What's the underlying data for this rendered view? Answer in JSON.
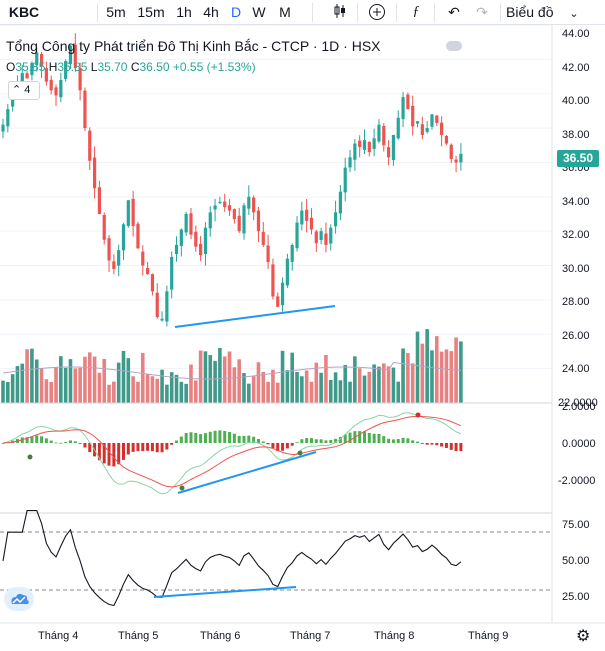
{
  "toolbar": {
    "symbol": "KBC",
    "intervals": [
      "5m",
      "15m",
      "1h",
      "4h",
      "D",
      "W",
      "M"
    ],
    "active_interval": "D",
    "chart_type_label": "Biểu đồ"
  },
  "legend": {
    "title": "Tổng Công ty Phát triển Đô Thị Kinh Bắc - CTCP · 1D · HSX",
    "o_label": "O",
    "o_val": "35.85",
    "h_label": "H",
    "h_val": "36.85",
    "l_label": "L",
    "l_val": "35.70",
    "c_label": "C",
    "c_val": "36.50",
    "change": "+0.55 (+1.53%)",
    "collapse_count": "4"
  },
  "price_axis": {
    "ticks": [
      "44.00",
      "42.00",
      "40.00",
      "38.00",
      "36.00",
      "34.00",
      "32.00",
      "30.00",
      "28.00",
      "26.00",
      "24.00",
      "22.0000"
    ],
    "last_price": "36.50"
  },
  "macd_axis": {
    "ticks": [
      "2.0000",
      "0.0000",
      "-2.0000"
    ]
  },
  "rsi_axis": {
    "ticks": [
      "75.00",
      "50.00",
      "25.00"
    ]
  },
  "time_axis": {
    "ticks": [
      "Tháng 4",
      "Tháng 5",
      "Tháng 6",
      "Tháng 7",
      "Tháng 8",
      "Tháng 9"
    ]
  },
  "colors": {
    "up": "#26a69a",
    "down": "#ef5350",
    "trendline": "#2196f3",
    "accent": "#2962ff"
  },
  "chart_data": {
    "type": "candlestick",
    "ylim": [
      22,
      44
    ],
    "closes": [
      38.2,
      39.1,
      39.8,
      40.6,
      41.2,
      40.9,
      41.8,
      42.4,
      41.6,
      40.7,
      40.2,
      39.9,
      40.8,
      41.9,
      42.8,
      41.5,
      40.2,
      38.0,
      36.1,
      34.5,
      33.0,
      31.5,
      30.3,
      29.8,
      30.9,
      32.4,
      33.8,
      32.3,
      31.0,
      30.0,
      29.5,
      28.5,
      27.0,
      26.9,
      28.5,
      30.5,
      31.2,
      32.1,
      33.0,
      31.8,
      31.1,
      30.6,
      32.2,
      33.1,
      33.5,
      33.7,
      33.4,
      33.2,
      32.7,
      32.0,
      33.5,
      34.0,
      33.1,
      32.0,
      31.2,
      30.2,
      28.2,
      27.6,
      29.0,
      30.4,
      31.2,
      32.5,
      33.2,
      32.6,
      32.1,
      31.3,
      32.0,
      31.2,
      32.2,
      33.1,
      34.3,
      35.7,
      36.3,
      37.1,
      36.9,
      37.3,
      36.6,
      37.4,
      38.2,
      37.0,
      36.3,
      37.6,
      38.6,
      39.8,
      39.1,
      38.1,
      38.4,
      37.6,
      38.0,
      38.8,
      38.3,
      37.6,
      37.1,
      36.2,
      36.0,
      36.5
    ]
  }
}
